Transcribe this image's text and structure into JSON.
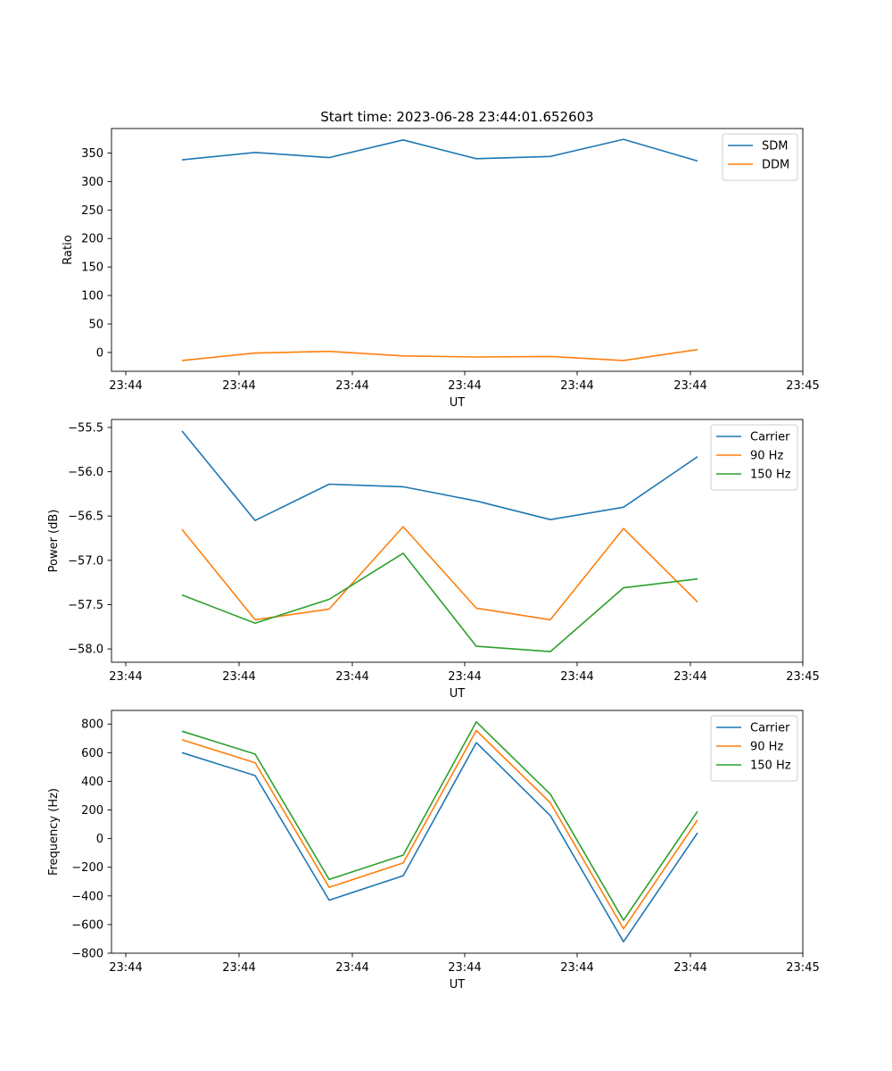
{
  "figure": {
    "title": "Start time: 2023-06-28 23:44:01.652603"
  },
  "chart_data": [
    {
      "type": "line",
      "ylabel": "Ratio",
      "xlabel": "UT",
      "x_tick_labels": [
        "23:44",
        "23:44",
        "23:44",
        "23:44",
        "23:44",
        "23:44",
        "23:44",
        "23:45"
      ],
      "yticks": [
        0,
        50,
        100,
        150,
        200,
        250,
        300,
        350
      ],
      "ylim": [
        -33,
        393
      ],
      "legend": "top-right",
      "grid": false,
      "series": [
        {
          "name": "SDM",
          "color": "#1f77b4",
          "values": [
            338,
            351,
            342,
            373,
            340,
            344,
            374,
            336
          ]
        },
        {
          "name": "DDM",
          "color": "#ff7f0e",
          "values": [
            -14,
            -1,
            2,
            -6,
            -8,
            -7,
            -14,
            5
          ]
        }
      ]
    },
    {
      "type": "line",
      "ylabel": "Power (dB)",
      "xlabel": "UT",
      "x_tick_labels": [
        "23:44",
        "23:44",
        "23:44",
        "23:44",
        "23:44",
        "23:44",
        "23:44",
        "23:45"
      ],
      "yticks": [
        -58.0,
        -57.5,
        -57.0,
        -56.5,
        -56.0,
        -55.5
      ],
      "ytick_labels": [
        "−58.0",
        "−57.5",
        "−57.0",
        "−56.5",
        "−56.0",
        "−55.5"
      ],
      "ylim": [
        -58.15,
        -55.41
      ],
      "legend": "top-right",
      "grid": false,
      "series": [
        {
          "name": "Carrier",
          "color": "#1f77b4",
          "values": [
            -55.54,
            -56.55,
            -56.14,
            -56.17,
            -56.33,
            -56.54,
            -56.4,
            -55.83
          ]
        },
        {
          "name": "90 Hz",
          "color": "#ff7f0e",
          "values": [
            -56.65,
            -57.67,
            -57.55,
            -56.62,
            -57.54,
            -57.67,
            -56.64,
            -57.47
          ]
        },
        {
          "name": "150 Hz",
          "color": "#2ca02c",
          "values": [
            -57.39,
            -57.71,
            -57.44,
            -56.92,
            -57.97,
            -58.03,
            -57.31,
            -57.21
          ]
        }
      ]
    },
    {
      "type": "line",
      "ylabel": "Frequency (Hz)",
      "xlabel": "UT",
      "x_tick_labels": [
        "23:44",
        "23:44",
        "23:44",
        "23:44",
        "23:44",
        "23:44",
        "23:44",
        "23:45"
      ],
      "yticks": [
        -800,
        -600,
        -400,
        -200,
        0,
        200,
        400,
        600,
        800
      ],
      "ytick_labels": [
        "−800",
        "−600",
        "−400",
        "−200",
        "0",
        "200",
        "400",
        "600",
        "800"
      ],
      "ylim": [
        -800,
        895
      ],
      "legend": "top-right",
      "grid": false,
      "series": [
        {
          "name": "Carrier",
          "color": "#1f77b4",
          "values": [
            600,
            440,
            -430,
            -260,
            670,
            160,
            -720,
            40
          ]
        },
        {
          "name": "90 Hz",
          "color": "#ff7f0e",
          "values": [
            690,
            530,
            -340,
            -170,
            755,
            250,
            -630,
            130
          ]
        },
        {
          "name": "150 Hz",
          "color": "#2ca02c",
          "values": [
            750,
            590,
            -285,
            -115,
            815,
            310,
            -570,
            190
          ]
        }
      ]
    }
  ]
}
